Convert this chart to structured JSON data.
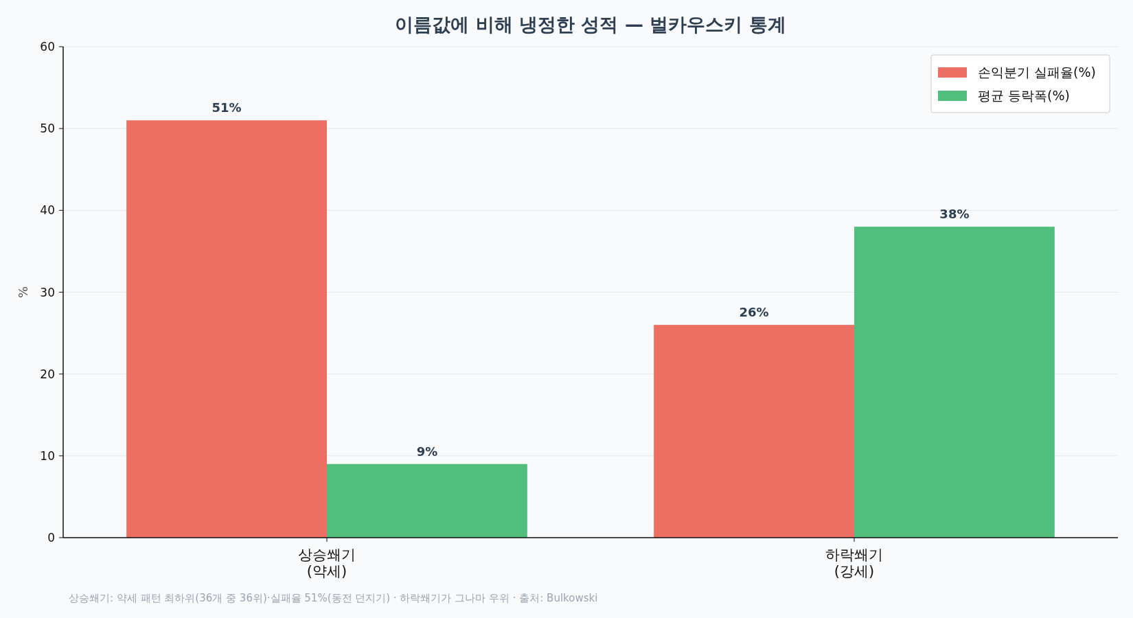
{
  "chart_data": {
    "type": "bar",
    "title": "이름값에 비해 냉정한 성적 — 벌카우스키 통계",
    "categories": [
      "상승쐐기\n(약세)",
      "하락쐐기\n(강세)"
    ],
    "series": [
      {
        "name": "손익분기 실패율(%)",
        "color": "#eb6f62",
        "values": [
          51,
          26
        ],
        "value_labels": [
          "51%",
          "26%"
        ]
      },
      {
        "name": "평균 등락폭(%)",
        "color": "#52be7e",
        "values": [
          9,
          38
        ],
        "value_labels": [
          "9%",
          "38%"
        ]
      }
    ],
    "ylabel": "%",
    "ylim": [
      0,
      60
    ],
    "yticks": [
      0,
      10,
      20,
      30,
      40,
      50,
      60
    ],
    "grid": "y",
    "legend": "top right",
    "annotations": [
      "상승쐐기: 약세 패턴 최하위(36개 중 36위)·실패율 51%(동전 던지기) · 하락쐐기가 그나마 우위 · 출처: Bulkowski"
    ]
  }
}
